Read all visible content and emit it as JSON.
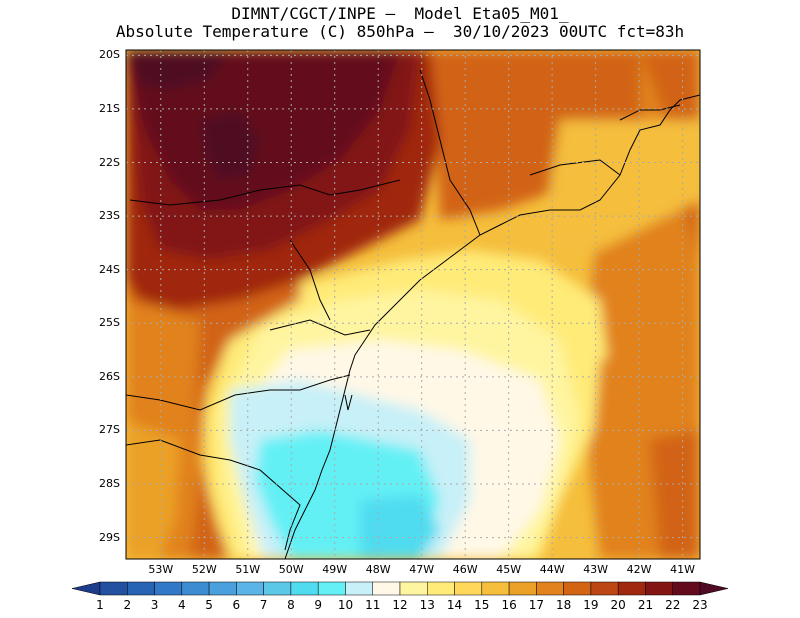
{
  "header": {
    "line1": "DIMNT/CGCT/INPE –  Model Eta05_M01_",
    "line2": "Absolute Temperature (C) 850hPa –  30/10/2023 00UTC fct=83h"
  },
  "map": {
    "lat_labels": [
      "20S",
      "21S",
      "22S",
      "23S",
      "24S",
      "25S",
      "26S",
      "27S",
      "28S",
      "29S"
    ],
    "lon_labels": [
      "53W",
      "52W",
      "51W",
      "50W",
      "49W",
      "48W",
      "47W",
      "46W",
      "45W",
      "44W",
      "43W",
      "42W",
      "41W"
    ],
    "lat_range": [
      -29.4,
      -19.9
    ],
    "lon_range": [
      -53.8,
      -40.6
    ],
    "grid": true
  },
  "colorbar": {
    "levels": [
      "1",
      "2",
      "3",
      "4",
      "5",
      "6",
      "7",
      "8",
      "9",
      "10",
      "11",
      "12",
      "13",
      "14",
      "15",
      "16",
      "17",
      "18",
      "19",
      "20",
      "21",
      "22",
      "23"
    ],
    "colors": [
      "#1e3c8c",
      "#2350a0",
      "#2864b4",
      "#3278c8",
      "#3c8cd2",
      "#4aa0dc",
      "#5ab4e6",
      "#5ac8e6",
      "#50dcf0",
      "#64f0f5",
      "#c8f0f8",
      "#fff8e6",
      "#fff5a0",
      "#ffeb78",
      "#ffd75a",
      "#f5be3c",
      "#eba028",
      "#e1821e",
      "#d26414",
      "#bc4614",
      "#a0280f",
      "#821414",
      "#640a1e",
      "#500a23"
    ]
  }
}
